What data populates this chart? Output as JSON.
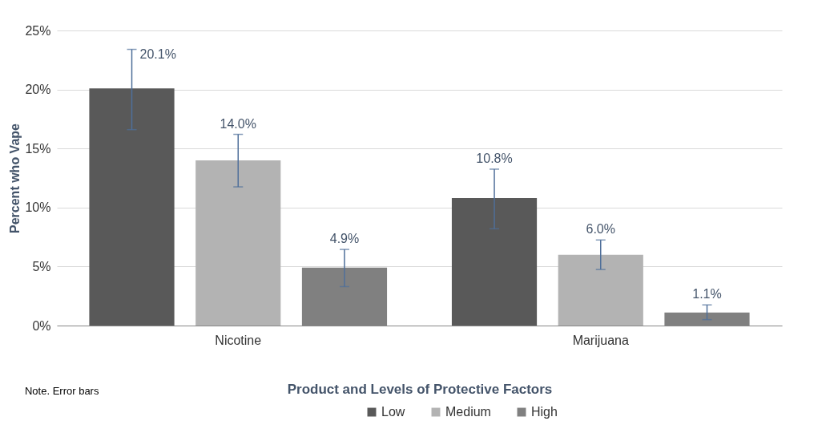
{
  "chart_data": {
    "type": "bar",
    "xlabel": "Product and Levels of Protective Factors",
    "ylabel": "Percent who Vape",
    "categories": [
      "Nicotine",
      "Marijuana"
    ],
    "series": [
      {
        "name": "Low",
        "color": "#595959",
        "values": [
          20.1,
          10.8
        ],
        "errors": [
          [
            16.6,
            23.4
          ],
          [
            8.2,
            13.25
          ]
        ],
        "value_labels": [
          "20.1%",
          "10.8%"
        ]
      },
      {
        "name": "Medium",
        "color": "#b3b3b3",
        "values": [
          14.0,
          6.0
        ],
        "errors": [
          [
            11.75,
            16.2
          ],
          [
            4.75,
            7.25
          ]
        ],
        "value_labels": [
          "14.0%",
          "6.0%"
        ]
      },
      {
        "name": "High",
        "color": "#808080",
        "values": [
          4.9,
          1.1
        ],
        "errors": [
          [
            3.3,
            6.45
          ],
          [
            0.5,
            1.75
          ]
        ],
        "value_labels": [
          "4.9%",
          "1.1%"
        ]
      }
    ],
    "ylim": [
      0,
      25
    ],
    "yticks": [
      {
        "value": 0,
        "label": "0%"
      },
      {
        "value": 5,
        "label": "5%"
      },
      {
        "value": 10,
        "label": "10%"
      },
      {
        "value": 15,
        "label": "15%"
      },
      {
        "value": 20,
        "label": "20%"
      },
      {
        "value": 25,
        "label": "25%"
      }
    ],
    "grid": "y",
    "legend": "bottom",
    "annotations": [
      "Note. Error bars"
    ]
  }
}
